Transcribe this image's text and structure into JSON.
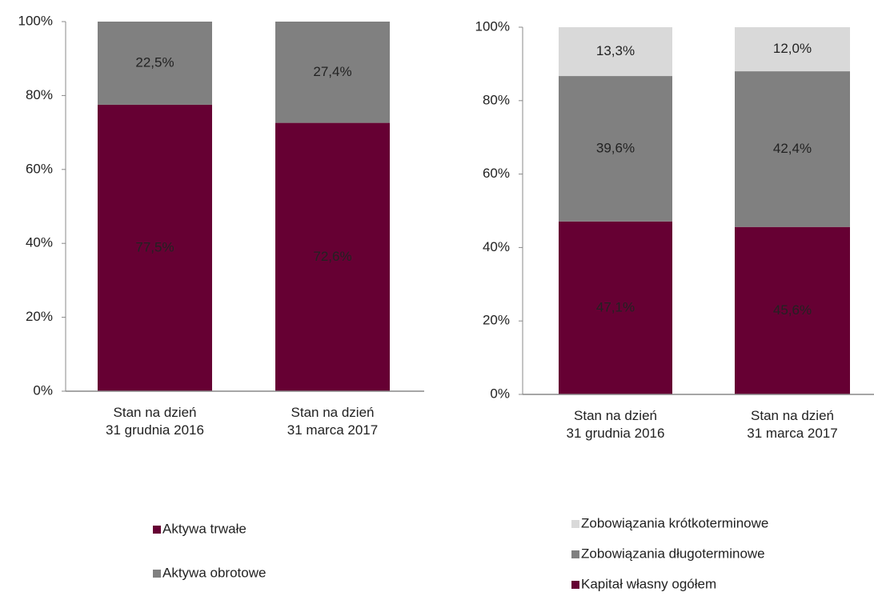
{
  "chart_data": [
    {
      "type": "bar",
      "stacked": true,
      "categories": [
        "Stan na dzień\n31 grudnia 2016",
        "Stan na dzień\n31 marca 2017"
      ],
      "series": [
        {
          "name": "Aktywa trwałe",
          "color": "#660033",
          "values": [
            77.5,
            72.6
          ],
          "value_labels": [
            "77,5%",
            "72,6%"
          ]
        },
        {
          "name": "Aktywa obrotowe",
          "color": "#808080",
          "values": [
            22.5,
            27.4
          ],
          "value_labels": [
            "22,5%",
            "27,4%"
          ]
        }
      ],
      "ylim": [
        0,
        100
      ],
      "yticks": [
        {
          "value": 0,
          "label": "0%"
        },
        {
          "value": 20,
          "label": "20%"
        },
        {
          "value": 40,
          "label": "40%"
        },
        {
          "value": 60,
          "label": "60%"
        },
        {
          "value": 80,
          "label": "80%"
        },
        {
          "value": 100,
          "label": "100%"
        }
      ],
      "legend_reversed": false
    },
    {
      "type": "bar",
      "stacked": true,
      "categories": [
        "Stan na dzień\n31 grudnia 2016",
        "Stan na dzień\n31 marca 2017"
      ],
      "series": [
        {
          "name": "Kapitał własny ogółem",
          "color": "#660033",
          "values": [
            47.1,
            45.6
          ],
          "value_labels": [
            "47,1%",
            "45,6%"
          ]
        },
        {
          "name": "Zobowiązania długoterminowe",
          "color": "#808080",
          "values": [
            39.6,
            42.4
          ],
          "value_labels": [
            "39,6%",
            "42,4%"
          ]
        },
        {
          "name": "Zobowiązania krótkoterminowe",
          "color": "#d9d9d9",
          "values": [
            13.3,
            12.0
          ],
          "value_labels": [
            "13,3%",
            "12,0%"
          ]
        }
      ],
      "ylim": [
        0,
        100
      ],
      "yticks": [
        {
          "value": 0,
          "label": "0%"
        },
        {
          "value": 20,
          "label": "20%"
        },
        {
          "value": 40,
          "label": "40%"
        },
        {
          "value": 60,
          "label": "60%"
        },
        {
          "value": 80,
          "label": "80%"
        },
        {
          "value": 100,
          "label": "100%"
        }
      ],
      "legend_reversed": true
    }
  ]
}
